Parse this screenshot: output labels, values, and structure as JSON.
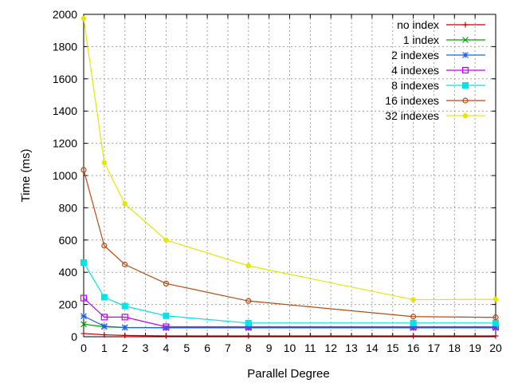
{
  "chart_data": {
    "type": "line",
    "title": "",
    "xlabel": "Parallel Degree",
    "ylabel": "Time (ms)",
    "xlim": [
      0,
      20
    ],
    "ylim": [
      0,
      2000
    ],
    "x_ticks": [
      0,
      1,
      2,
      3,
      4,
      5,
      6,
      7,
      8,
      9,
      10,
      11,
      12,
      13,
      14,
      15,
      16,
      17,
      18,
      19,
      20
    ],
    "y_ticks": [
      0,
      200,
      400,
      600,
      800,
      1000,
      1200,
      1400,
      1600,
      1800,
      2000
    ],
    "grid": true,
    "legend_position": "top-right",
    "x": [
      0,
      1,
      2,
      4,
      8,
      16,
      20
    ],
    "series": [
      {
        "name": "no index",
        "color": "#c00000",
        "marker": "plus",
        "values": [
          20,
          12,
          8,
          5,
          5,
          5,
          5
        ]
      },
      {
        "name": "1 index",
        "color": "#00a000",
        "marker": "cross",
        "values": [
          78,
          62,
          57,
          57,
          57,
          57,
          57
        ]
      },
      {
        "name": "2 indexes",
        "color": "#2060e0",
        "marker": "star",
        "values": [
          128,
          65,
          57,
          55,
          55,
          55,
          55
        ]
      },
      {
        "name": "4 indexes",
        "color": "#c000ff",
        "marker": "square-open",
        "values": [
          240,
          122,
          122,
          62,
          62,
          62,
          62
        ]
      },
      {
        "name": "8 indexes",
        "color": "#00e5e5",
        "marker": "square-filled",
        "values": [
          460,
          245,
          190,
          130,
          85,
          85,
          85
        ]
      },
      {
        "name": "16 indexes",
        "color": "#b84a10",
        "marker": "circle-open",
        "values": [
          1035,
          565,
          448,
          330,
          222,
          125,
          120
        ]
      },
      {
        "name": "32 indexes",
        "color": "#e6e600",
        "marker": "circle-filled",
        "values": [
          1975,
          1080,
          825,
          600,
          440,
          230,
          232
        ]
      }
    ]
  }
}
